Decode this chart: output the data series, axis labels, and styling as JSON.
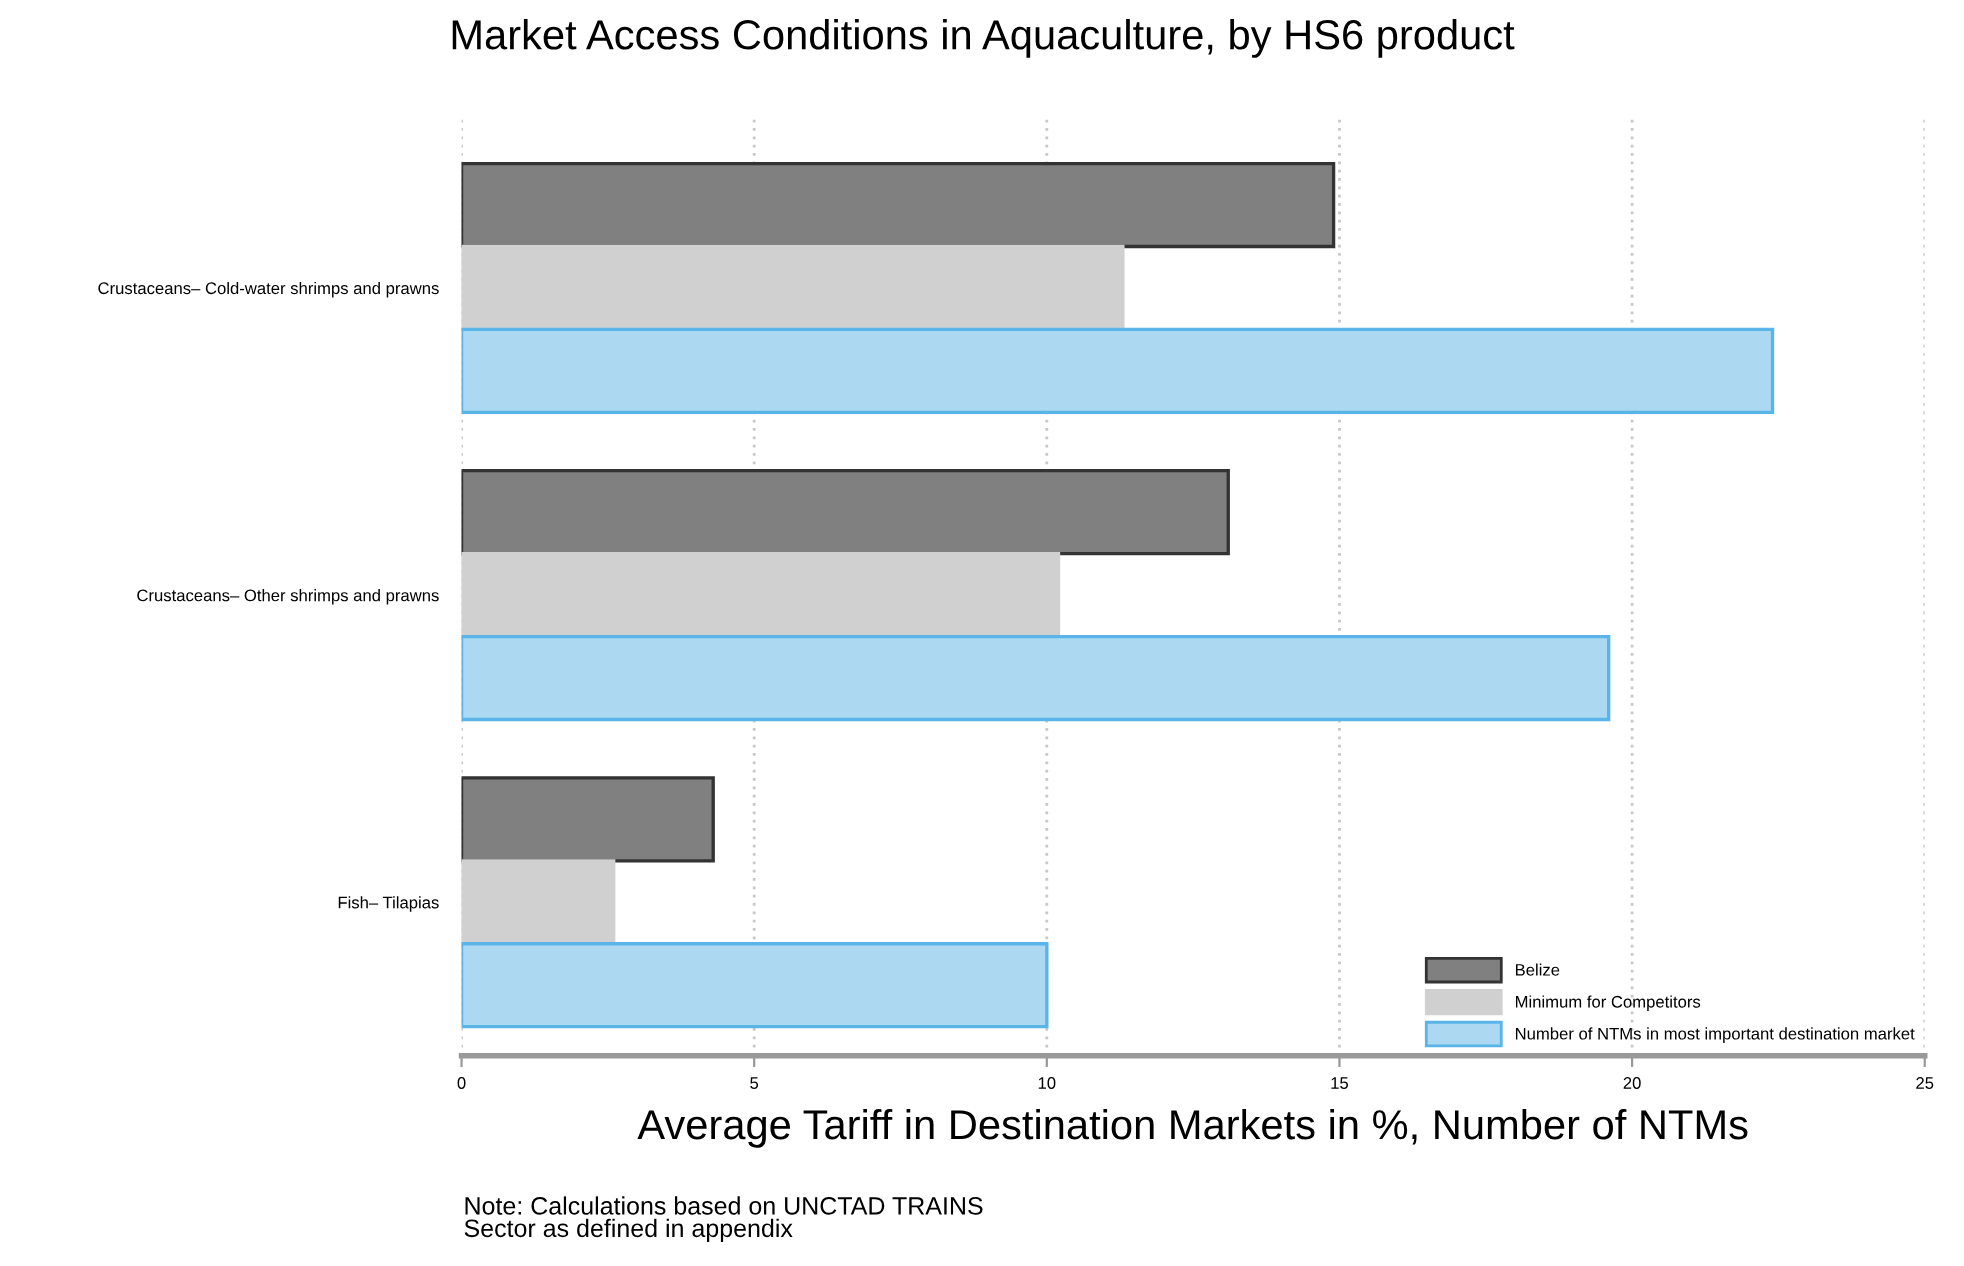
{
  "chart_data": {
    "type": "bar",
    "orientation": "horizontal",
    "title": "Market Access Conditions in Aquaculture, by HS6 product",
    "xlabel": "Average Tariff in Destination Markets in %, Number of NTMs",
    "categories": [
      "Crustaceans– Cold-water shrimps and prawns",
      "Crustaceans– Other shrimps and prawns",
      "Fish– Tilapias"
    ],
    "series": [
      {
        "name": "Belize",
        "color": "#808080",
        "values": [
          14.9,
          13.1,
          4.3
        ]
      },
      {
        "name": "Minimum for Competitors",
        "color": "#d0d0d0",
        "values": [
          11.3,
          10.2,
          2.6
        ]
      },
      {
        "name": "Number of NTMs in most important destination market",
        "color": "#acd8f2",
        "values": [
          22.4,
          19.6,
          10.0
        ]
      }
    ],
    "xlim": [
      0,
      25
    ],
    "xticks": [
      0,
      5,
      10,
      15,
      20,
      25
    ],
    "grid": "x",
    "legend": "bottom right",
    "annotations": [
      "Note: Calculations based on UNCTAD TRAINS\nSector as defined in appendix"
    ]
  }
}
